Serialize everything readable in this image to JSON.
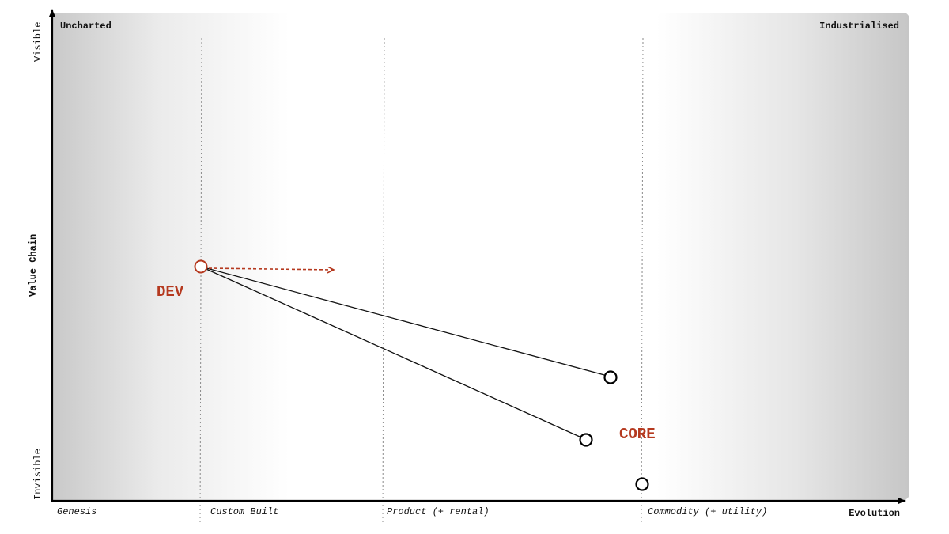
{
  "map": {
    "corner_left": "Uncharted",
    "corner_right": "Industrialised",
    "y_axis": {
      "title": "Value Chain",
      "top": "Visible",
      "bottom": "Invisible"
    },
    "x_axis": {
      "title": "Evolution",
      "stages": [
        "Genesis",
        "Custom Built",
        "Product (+ rental)",
        "Commodity (+ utility)"
      ]
    },
    "components": {
      "dev": {
        "label": "DEV",
        "color": "#b5391f"
      },
      "core": {
        "label": "CORE",
        "color": "#b5391f"
      },
      "node_a": {
        "label": ""
      },
      "node_b": {
        "label": ""
      },
      "node_c": {
        "label": ""
      }
    },
    "colors": {
      "accent": "#b5391f",
      "line": "#111111",
      "gradient_edge": "#c8c8c8"
    }
  }
}
